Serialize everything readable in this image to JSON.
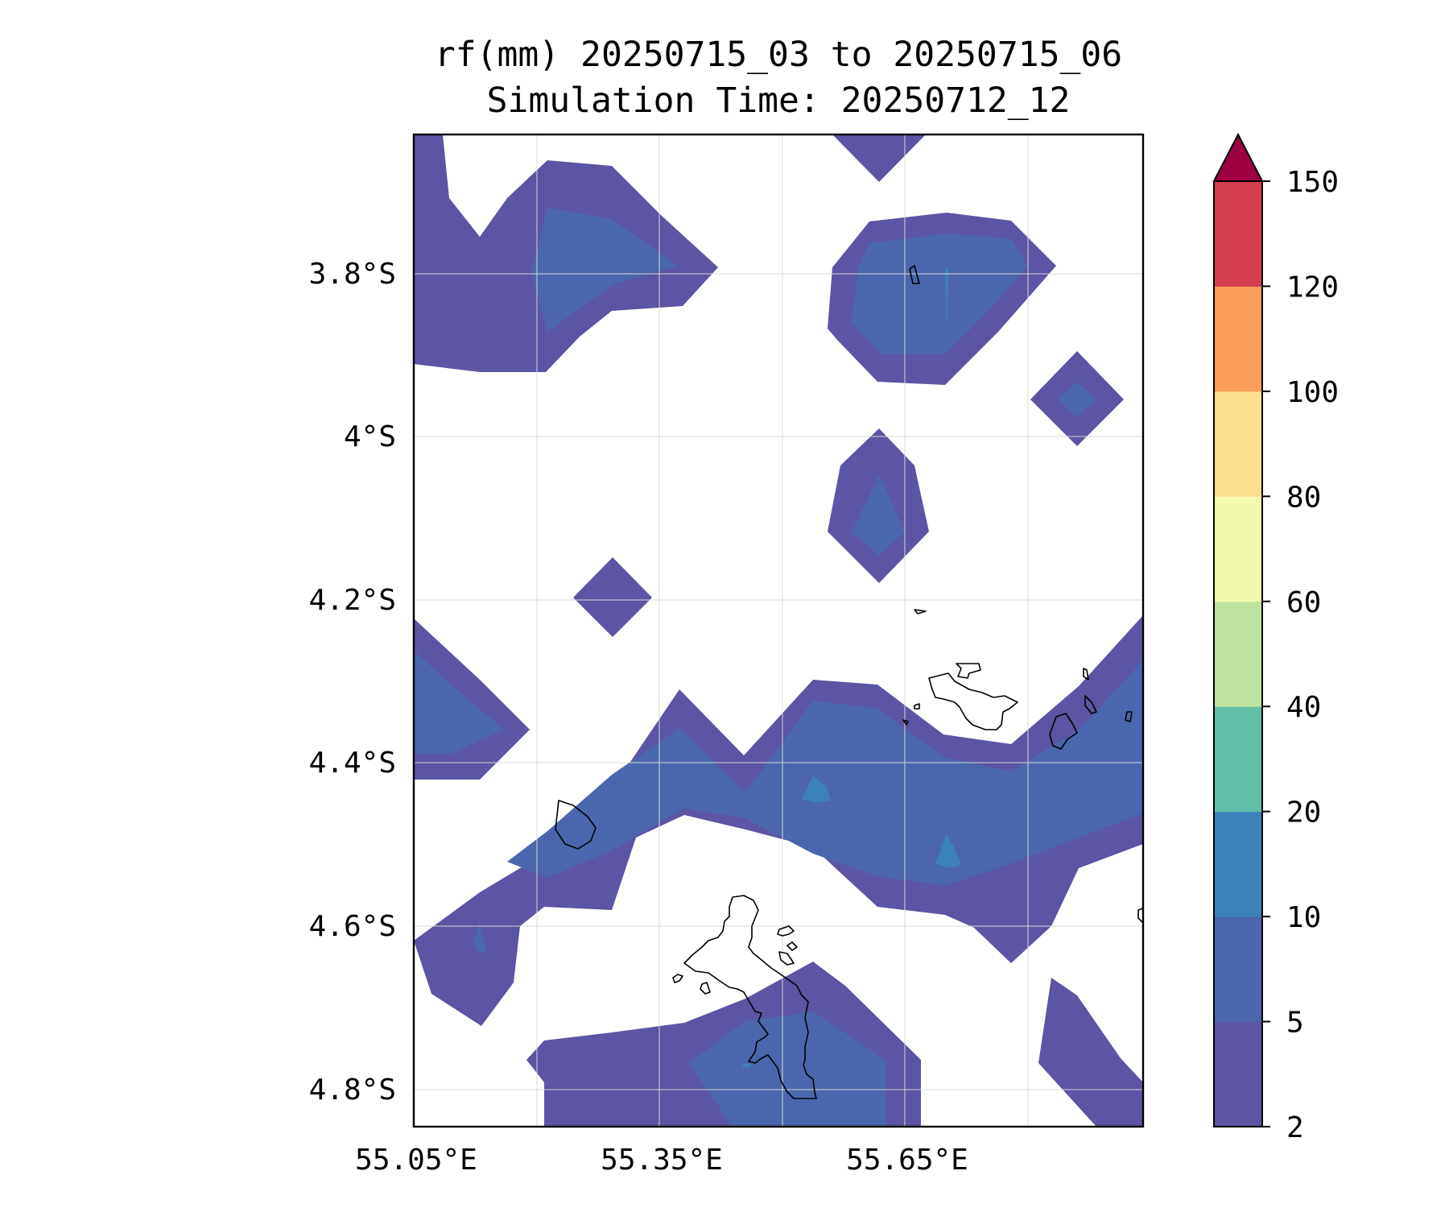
{
  "title": {
    "line1": "rf(mm) 20250715_03 to 20250715_06",
    "line2": "Simulation Time: 20250712_12"
  },
  "map": {
    "lat_ticks": [
      "3.8°S",
      "4°S",
      "4.2°S",
      "4.4°S",
      "4.6°S",
      "4.8°S"
    ],
    "lon_ticks": [
      "55.05°E",
      "55.35°E",
      "55.65°E"
    ],
    "gridlines": true
  },
  "colorbar": {
    "tick_labels": [
      "2",
      "5",
      "10",
      "20",
      "40",
      "60",
      "80",
      "100",
      "120",
      "150"
    ],
    "colors": [
      "#5c54a4",
      "#4b66ae",
      "#3b82bb",
      "#63bea8",
      "#bde39f",
      "#f3faad",
      "#fbdf8c",
      "#f99e5b",
      "#d53e4f",
      "#9e0142"
    ],
    "extend": "max",
    "levels": [
      {
        "from": 2,
        "to": 5,
        "color": "#5c54a4"
      },
      {
        "from": 5,
        "to": 10,
        "color": "#4b66ae"
      },
      {
        "from": 10,
        "to": 20,
        "color": "#3b82bb"
      },
      {
        "from": 20,
        "to": 40,
        "color": "#63bea8"
      },
      {
        "from": 40,
        "to": 60,
        "color": "#bde39f"
      },
      {
        "from": 60,
        "to": 80,
        "color": "#f3faad"
      },
      {
        "from": 80,
        "to": 100,
        "color": "#fbdf8c"
      },
      {
        "from": 100,
        "to": 120,
        "color": "#f99e5b"
      },
      {
        "from": 120,
        "to": 150,
        "color": "#d53e4f"
      },
      {
        "from": 150,
        "to": null,
        "color": "#9e0142"
      }
    ]
  }
}
